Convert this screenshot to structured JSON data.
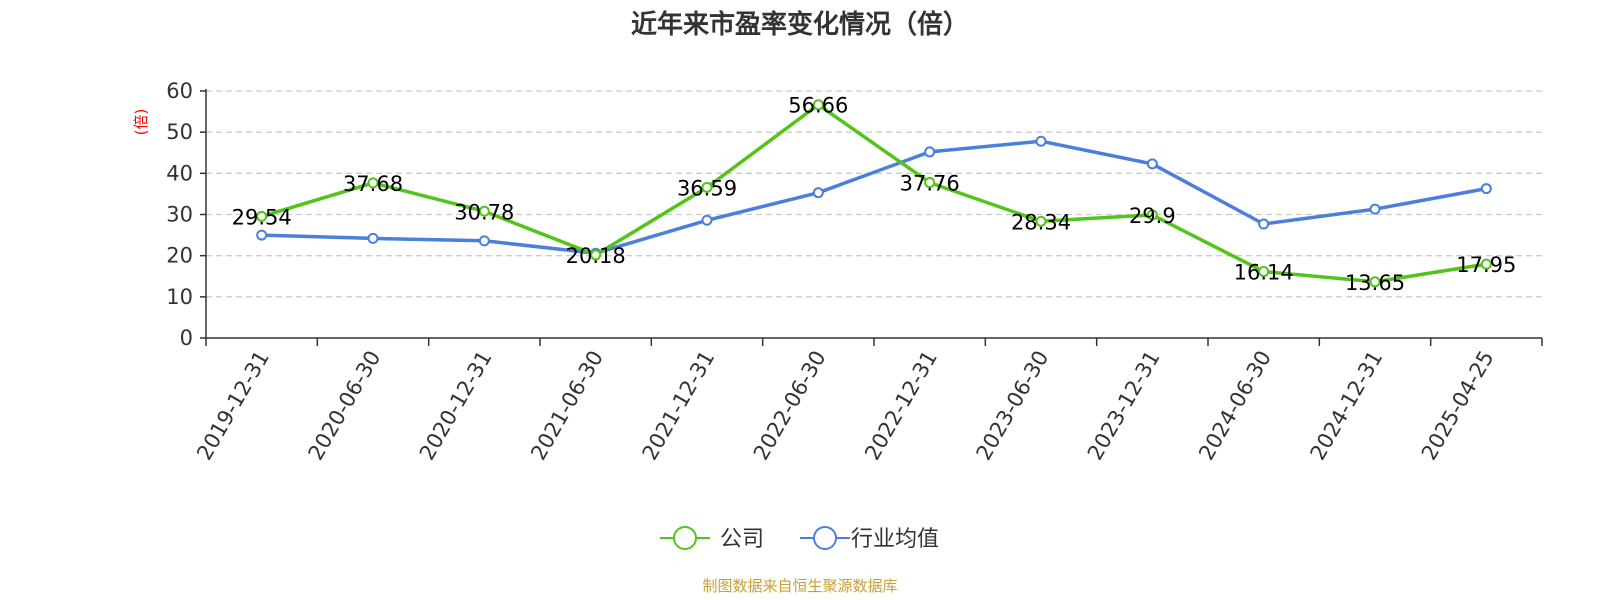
{
  "chart_data": {
    "type": "line",
    "title": "近年来市盈率变化情况（倍）",
    "ylabel": "(倍)",
    "xlabel": "",
    "ylim": [
      0,
      60
    ],
    "yticks": [
      0,
      10,
      20,
      30,
      40,
      50,
      60
    ],
    "grid": true,
    "legend_position": "bottom-center",
    "categories": [
      "2019-12-31",
      "2020-06-30",
      "2020-12-31",
      "2021-06-30",
      "2021-12-31",
      "2022-06-30",
      "2022-12-31",
      "2023-06-30",
      "2023-12-31",
      "2024-06-30",
      "2024-12-31",
      "2025-04-25"
    ],
    "series": [
      {
        "name": "公司",
        "color": "#52c41a",
        "values": [
          29.54,
          37.68,
          30.78,
          20.18,
          36.59,
          56.66,
          37.76,
          28.34,
          29.9,
          16.14,
          13.65,
          17.95
        ],
        "labels": [
          "29.54",
          "37.68",
          "30.78",
          "20.18",
          "36.59",
          "56.66",
          "37.76",
          "28.34",
          "29.9",
          "16.14",
          "13.65",
          "17.95"
        ]
      },
      {
        "name": "行业均值",
        "color": "#4a7fdc",
        "values": [
          25.0,
          24.2,
          23.6,
          20.6,
          28.6,
          35.3,
          45.2,
          47.8,
          42.3,
          27.7,
          31.3,
          36.3
        ]
      }
    ],
    "source": "制图数据来自恒生聚源数据库"
  }
}
